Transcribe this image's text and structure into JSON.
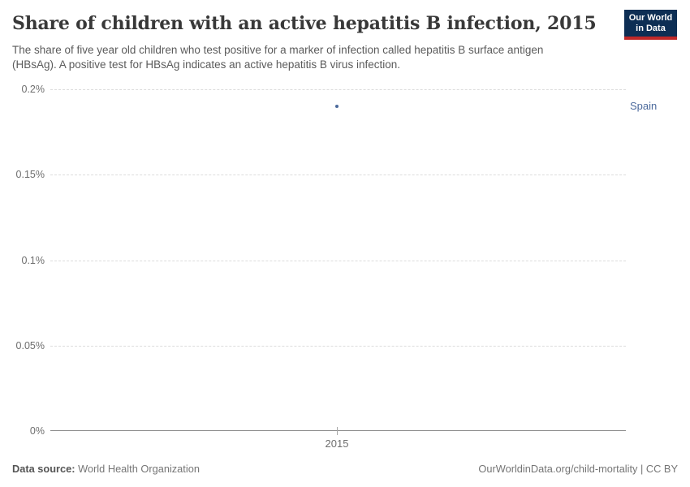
{
  "header": {
    "title": "Share of children with an active hepatitis B infection, 2015",
    "subtitle_line1": "The share of five year old children who test positive for a marker of infection called hepatitis B surface antigen",
    "subtitle_line2": "(HBsAg). A positive test for HBsAg indicates an active hepatitis B virus infection.",
    "logo": {
      "line1": "Our World",
      "line2": "in Data"
    }
  },
  "chart_data": {
    "type": "scatter",
    "title": "Share of children with an active hepatitis B infection, 2015",
    "x": [
      2015
    ],
    "series": [
      {
        "name": "Spain",
        "values": [
          0.19
        ]
      }
    ],
    "unit": "%",
    "xlabel": "",
    "ylabel": "",
    "ylim": [
      0,
      0.2
    ],
    "ytick_values": [
      0,
      0.05,
      0.1,
      0.15,
      0.2
    ],
    "grid": "horizontal dashed",
    "legend_position": "right-of-plot entity label",
    "point_color": "#4c6a9c"
  },
  "axis": {
    "y_tick_labels": [
      "0.2%",
      "0.15%",
      "0.1%",
      "0.05%",
      "0%"
    ],
    "x_tick_label": "2015"
  },
  "plot": {
    "entity_label": "Spain"
  },
  "footer": {
    "source_label": "Data source:",
    "source_value": " World Health Organization",
    "credit": "OurWorldinData.org/child-mortality | CC BY"
  },
  "colors": {
    "accent_blue": "#4c6a9c",
    "logo_navy": "#0d2e54",
    "logo_red": "#bf2828",
    "title_text": "#383838",
    "subtitle_text": "#5b5b5b",
    "tick_text": "#6e6e6e",
    "gridline": "#dcdcdc",
    "axis_line": "#8f8f8f",
    "footer_text": "#757575"
  }
}
